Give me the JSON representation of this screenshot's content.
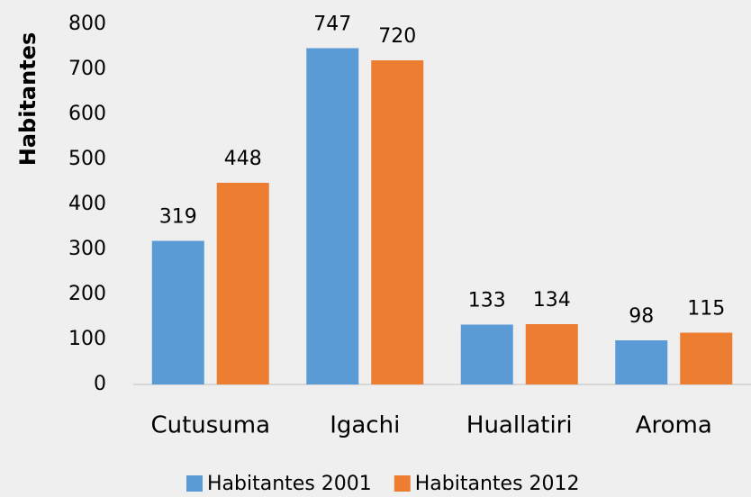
{
  "chart_data": {
    "type": "bar",
    "y_axis_label": "Habitantes",
    "categories": [
      "Cutusuma",
      "Igachi",
      "Huallatiri",
      "Aroma"
    ],
    "series": [
      {
        "name": "Habitantes 2001",
        "color": "#5b9bd5",
        "values": [
          319,
          747,
          133,
          98
        ]
      },
      {
        "name": "Habitantes 2012",
        "color": "#ed7d31",
        "values": [
          448,
          720,
          134,
          115
        ]
      }
    ],
    "ylim": [
      0,
      800
    ],
    "yticks": [
      0,
      100,
      200,
      300,
      400,
      500,
      600,
      700,
      800
    ],
    "grid": false,
    "legend": "bottom"
  }
}
